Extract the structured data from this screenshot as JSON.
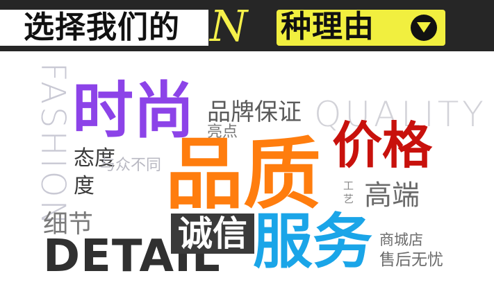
{
  "header": {
    "text_left": "选择我们的",
    "n_letter": "N",
    "text_right": "种理由",
    "icon": "chevron-down-circle-icon",
    "colors": {
      "bar": "#262626",
      "accent": "#f1ef3f"
    }
  },
  "cloud": {
    "fashion": "FASHION",
    "quality": "QUALITY",
    "detail": "DETAIL",
    "shishang": "时尚",
    "pinpai_baozheng": "品牌保证",
    "liangdian": "亮点",
    "jiage": "价格",
    "taidu": "态度",
    "du": "度",
    "yu_zhong_butong": "与众不同",
    "pinzhi": "品质",
    "gongyi_gong": "工",
    "gongyi_yi": "艺",
    "gaoduan": "高端",
    "xijie": "细节",
    "chengxin": "诚信",
    "fuwu": "服务",
    "shangchengdian": "商城店",
    "shouhou_wuyou": "售后无忧"
  },
  "colors": {
    "purple": "#8c43e8",
    "orange": "#ff7d0e",
    "red": "#c8110c",
    "blue": "#1aa5e8",
    "dark": "#3a3a3a",
    "gray": "#6b6b6b",
    "light": "#cfcfd8"
  }
}
